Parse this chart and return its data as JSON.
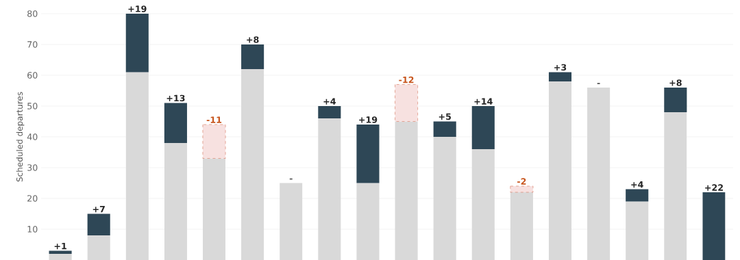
{
  "chart_data": {
    "type": "bar",
    "ylabel": "Scheduled departures",
    "stacked": true,
    "categories": [
      null,
      null,
      null,
      null,
      null,
      null,
      null,
      null,
      null,
      null,
      null,
      null,
      null,
      null,
      null,
      null,
      null,
      null
    ],
    "series": [
      {
        "color": "#d9d9d9",
        "values": [
          2,
          8,
          61,
          38,
          33,
          62,
          25,
          46,
          25,
          45,
          40,
          36,
          22,
          58,
          56,
          19,
          48,
          null
        ],
        "value_labels": [
          null,
          null,
          null,
          null,
          null,
          null,
          "-",
          null,
          null,
          null,
          null,
          null,
          null,
          null,
          "-",
          null,
          null,
          null
        ]
      },
      {
        "color": "#2e4756",
        "values": [
          1,
          7,
          19,
          13,
          null,
          8,
          null,
          4,
          19,
          null,
          5,
          14,
          null,
          3,
          null,
          4,
          8,
          22
        ],
        "value_labels": [
          "+1",
          "+7",
          "+19",
          "+13",
          null,
          "+8",
          null,
          "+4",
          "+19",
          null,
          "+5",
          "+14",
          null,
          "+3",
          null,
          "+4",
          "+8",
          "+22"
        ]
      },
      {
        "color": "#f7e1e0",
        "line_style": "dashed",
        "base": [
          null,
          null,
          null,
          null,
          44,
          null,
          null,
          null,
          null,
          57,
          null,
          null,
          24,
          null,
          null,
          null,
          null,
          null
        ],
        "values": [
          null,
          null,
          null,
          null,
          -11,
          null,
          null,
          null,
          null,
          -12,
          null,
          null,
          -2,
          null,
          null,
          null,
          null,
          null
        ],
        "value_labels": [
          null,
          null,
          null,
          null,
          "-11",
          null,
          null,
          null,
          null,
          "-12",
          null,
          null,
          "-2",
          null,
          null,
          null,
          null,
          null
        ]
      }
    ],
    "ylim": [
      0,
      80
    ],
    "yticks": [
      10,
      20,
      30,
      40,
      50,
      60,
      70,
      80
    ],
    "grid": "y"
  }
}
